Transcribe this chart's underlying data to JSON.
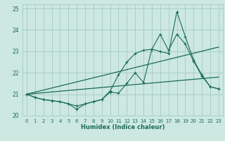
{
  "xlabel": "Humidex (Indice chaleur)",
  "xlim": [
    -0.5,
    23.5
  ],
  "ylim": [
    20,
    25.2
  ],
  "yticks": [
    20,
    21,
    22,
    23,
    24,
    25
  ],
  "xticks": [
    0,
    1,
    2,
    3,
    4,
    5,
    6,
    7,
    8,
    9,
    10,
    11,
    12,
    13,
    14,
    15,
    16,
    17,
    18,
    19,
    20,
    21,
    22,
    23
  ],
  "bg_color": "#cce8e0",
  "grid_color": "#aacfc5",
  "line_color": "#1a6b5a",
  "series1_x": [
    0,
    1,
    2,
    3,
    4,
    5,
    6,
    7,
    8,
    9,
    10,
    11,
    12,
    13,
    14,
    15,
    16,
    17,
    18,
    19,
    20,
    21,
    22,
    23
  ],
  "series1_y": [
    21.0,
    20.85,
    20.75,
    20.7,
    20.65,
    20.55,
    20.3,
    20.55,
    20.65,
    20.75,
    21.1,
    21.05,
    21.5,
    22.0,
    21.55,
    23.1,
    23.0,
    22.9,
    24.85,
    23.7,
    22.6,
    21.9,
    21.35,
    21.25
  ],
  "series2_x": [
    0,
    1,
    2,
    3,
    4,
    5,
    6,
    7,
    8,
    9,
    10,
    11,
    12,
    13,
    14,
    15,
    16,
    17,
    18,
    19,
    20,
    21,
    22,
    23
  ],
  "series2_y": [
    21.0,
    20.85,
    20.75,
    20.7,
    20.65,
    20.55,
    20.45,
    20.55,
    20.65,
    20.75,
    21.15,
    21.9,
    22.5,
    22.9,
    23.05,
    23.1,
    23.8,
    23.05,
    23.8,
    23.35,
    22.55,
    21.85,
    21.35,
    21.25
  ],
  "trend1_x": [
    0,
    23
  ],
  "trend1_y": [
    21.0,
    23.2
  ],
  "trend2_x": [
    0,
    23
  ],
  "trend2_y": [
    21.0,
    21.8
  ]
}
